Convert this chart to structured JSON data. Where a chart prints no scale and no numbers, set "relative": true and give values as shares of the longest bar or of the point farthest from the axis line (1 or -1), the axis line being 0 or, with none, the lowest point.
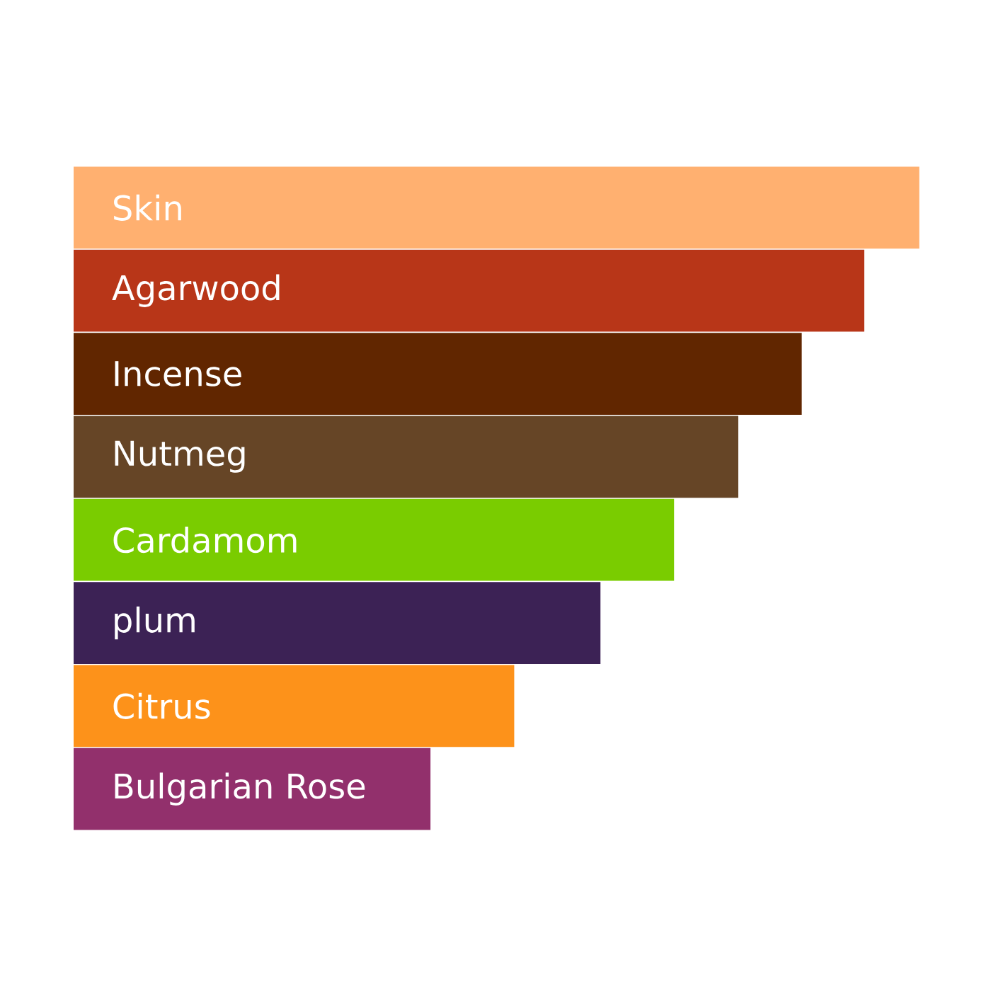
{
  "chart_data": {
    "type": "bar",
    "orientation": "horizontal",
    "relative": true,
    "categories": [
      "Skin",
      "Agarwood",
      "Incense",
      "Nutmeg",
      "Cardamom",
      "plum",
      "Citrus",
      "Bulgarian Rose"
    ],
    "values": [
      1,
      0.935,
      0.861,
      0.786,
      0.71,
      0.623,
      0.521,
      0.422
    ],
    "colors": [
      "#ffb070",
      "#b83618",
      "#612600",
      "#664526",
      "#7acc00",
      "#3c2255",
      "#fd921a",
      "#92306c"
    ]
  }
}
